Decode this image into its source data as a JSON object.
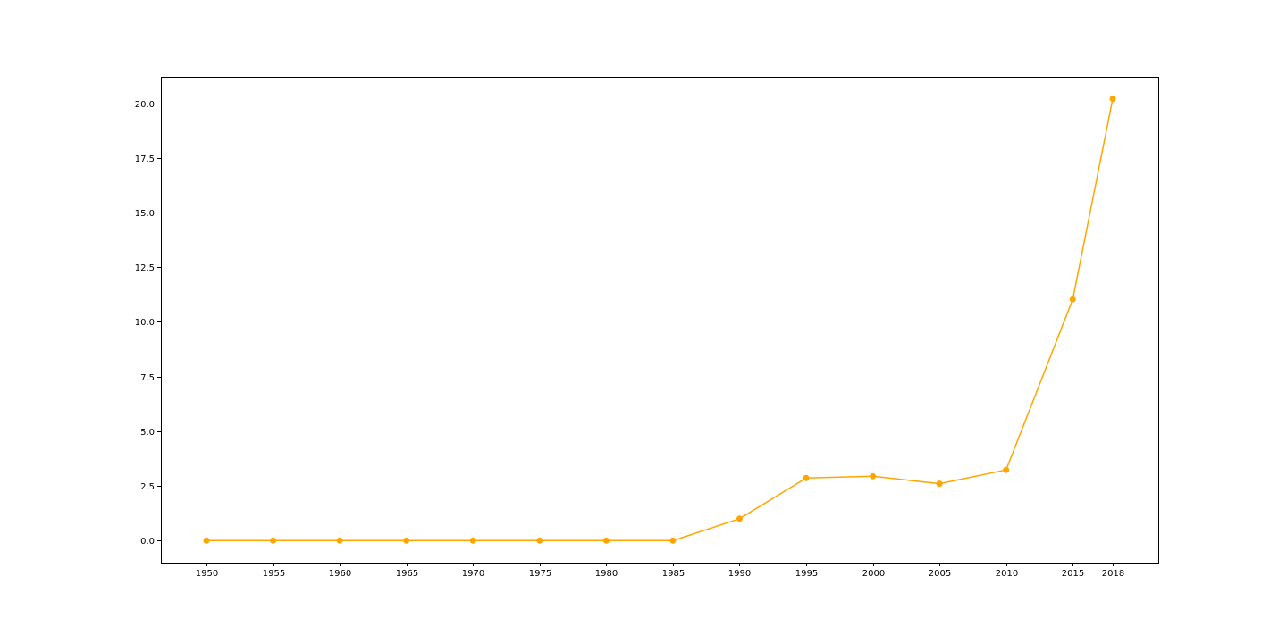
{
  "colors": {
    "series": "#ffa500",
    "axes": "#000000",
    "background": "#ffffff"
  },
  "chart_data": {
    "type": "line",
    "title": "",
    "xlabel": "",
    "ylabel": "",
    "x": [
      "1950",
      "1955",
      "1960",
      "1965",
      "1970",
      "1975",
      "1980",
      "1985",
      "1990",
      "1995",
      "2000",
      "2005",
      "2010",
      "2015",
      "2018"
    ],
    "series": [
      {
        "values": [
          0.0,
          0.0,
          0.0,
          0.0,
          0.0,
          0.0,
          0.0,
          0.0,
          1.0,
          2.86,
          2.94,
          2.6,
          3.23,
          11.03,
          20.2
        ],
        "color": "#ffa500",
        "marker": "circle"
      }
    ],
    "xticks": [
      "1950",
      "1955",
      "1960",
      "1965",
      "1970",
      "1975",
      "1980",
      "1985",
      "1990",
      "1995",
      "2000",
      "2005",
      "2010",
      "2015",
      "2018"
    ],
    "yticks": [
      "0.0",
      "2.5",
      "5.0",
      "7.5",
      "10.0",
      "12.5",
      "15.0",
      "17.5",
      "20.0"
    ],
    "ylim": [
      -1.01,
      21.21
    ],
    "grid": false,
    "legend": "none"
  }
}
